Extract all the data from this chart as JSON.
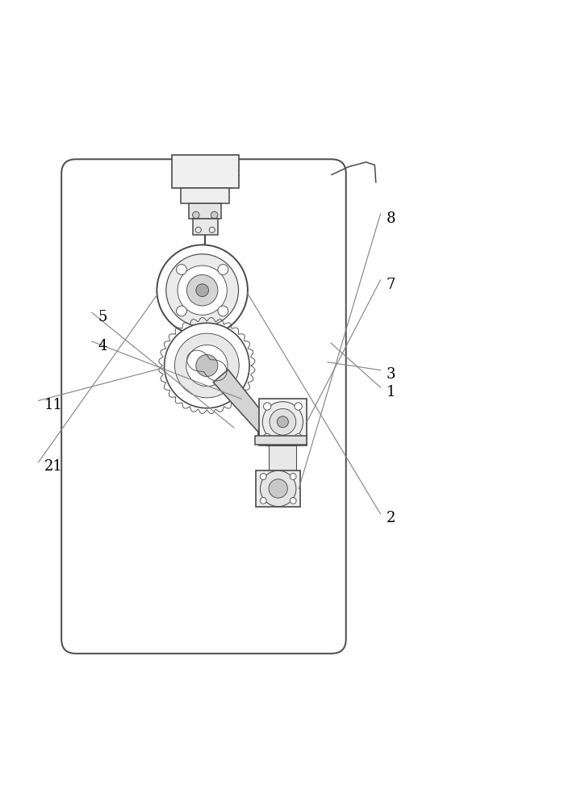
{
  "bg": "#ffffff",
  "lc": "#4a4a4a",
  "lw": 1.1,
  "tlw": 0.65,
  "pf": "#f2f2f2",
  "df": "#cccccc"
}
